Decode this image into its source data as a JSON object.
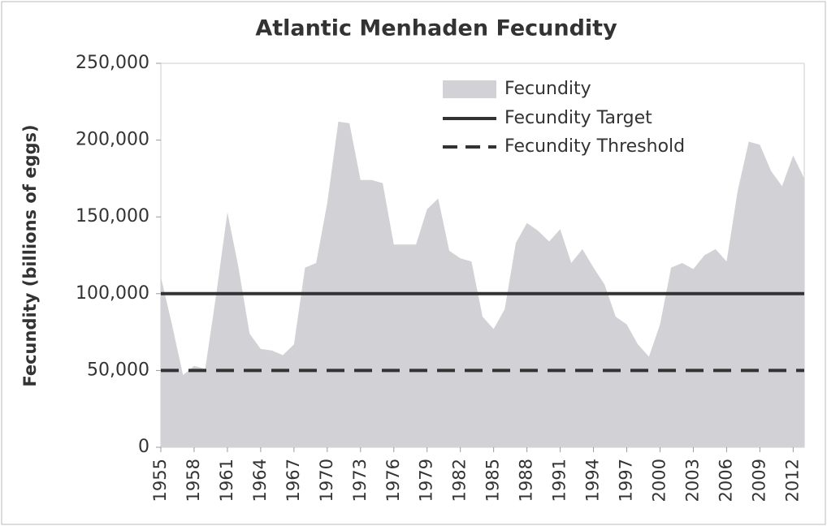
{
  "chart_data": {
    "type": "area",
    "title": "Atlantic Menhaden Fecundity",
    "y_label": "Fecundity (billions of eggs)",
    "x": [
      1955,
      1956,
      1957,
      1958,
      1959,
      1960,
      1961,
      1962,
      1963,
      1964,
      1965,
      1966,
      1967,
      1968,
      1969,
      1970,
      1971,
      1972,
      1973,
      1974,
      1975,
      1976,
      1977,
      1978,
      1979,
      1980,
      1981,
      1982,
      1983,
      1984,
      1985,
      1986,
      1987,
      1988,
      1989,
      1990,
      1991,
      1992,
      1993,
      1994,
      1995,
      1996,
      1997,
      1998,
      1999,
      2000,
      2001,
      2002,
      2003,
      2004,
      2005,
      2006,
      2007,
      2008,
      2009,
      2010,
      2011,
      2012,
      2013
    ],
    "series": [
      {
        "name": "Fecundity",
        "color": "#d2d2d6",
        "values": [
          111000,
          80000,
          47000,
          53000,
          51000,
          100000,
          153000,
          117000,
          74000,
          64000,
          63000,
          60000,
          67000,
          117000,
          120000,
          159000,
          212000,
          211000,
          174000,
          174000,
          172000,
          132000,
          132000,
          132000,
          155000,
          162000,
          128000,
          123000,
          121000,
          85000,
          77000,
          90000,
          133000,
          146000,
          141000,
          134000,
          142000,
          120000,
          129000,
          117000,
          106000,
          85000,
          80000,
          67000,
          59000,
          80000,
          117000,
          120000,
          116000,
          125000,
          129000,
          121000,
          167000,
          199000,
          197000,
          180000,
          170000,
          190000,
          175000
        ]
      }
    ],
    "reference_lines": [
      {
        "name": "Fecundity Target",
        "value": 100000,
        "color": "#333333",
        "dashed": false
      },
      {
        "name": "Fecundity Threshold",
        "value": 50000,
        "color": "#333333",
        "dashed": true
      }
    ],
    "xlim": [
      1955,
      2013
    ],
    "xticks": [
      1955,
      1958,
      1961,
      1964,
      1967,
      1970,
      1973,
      1976,
      1979,
      1982,
      1985,
      1988,
      1991,
      1994,
      1997,
      2000,
      2003,
      2006,
      2009,
      2012
    ],
    "ylim": [
      0,
      250000
    ],
    "yticks": [
      0,
      {
        "value": 50000,
        "label": "50,000"
      },
      {
        "value": 100000,
        "label": "100,000"
      },
      {
        "value": 150000,
        "label": "150,000"
      },
      {
        "value": 200000,
        "label": "200,000"
      },
      {
        "value": 250000,
        "label": "250,000"
      }
    ],
    "legend": "top"
  }
}
